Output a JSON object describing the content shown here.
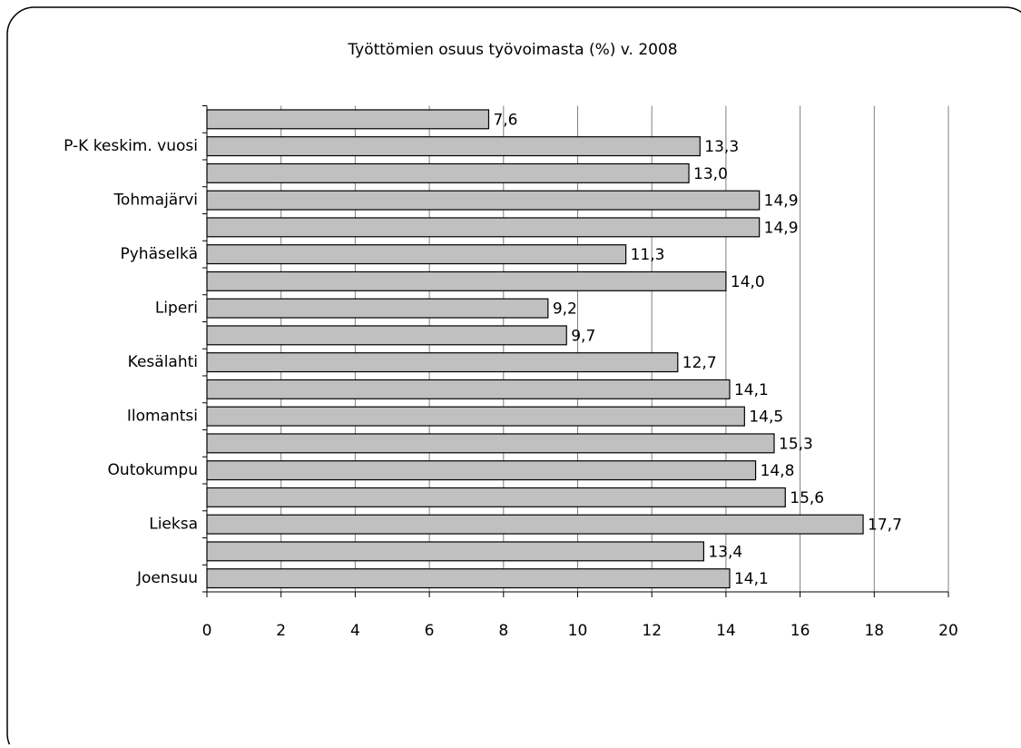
{
  "chart_data": {
    "type": "bar",
    "orientation": "horizontal",
    "title": "Työttömien osuus työvoimasta (%) v. 2008",
    "categories": [
      "Joensuu",
      null,
      "Lieksa",
      null,
      "Outokumpu",
      null,
      "Ilomantsi",
      null,
      "Kesälahti",
      null,
      "Liperi",
      null,
      "Pyhäselkä",
      null,
      "Tohmajärvi",
      null,
      "P-K keskim. vuosi",
      null
    ],
    "values": [
      14.1,
      13.4,
      17.7,
      15.6,
      14.8,
      15.3,
      14.5,
      14.1,
      12.7,
      9.7,
      9.2,
      14.0,
      11.3,
      14.9,
      14.9,
      13.0,
      13.3,
      7.6
    ],
    "value_labels": [
      "14,1",
      "13,4",
      "17,7",
      "15,6",
      "14,8",
      "15,3",
      "14,5",
      "14,1",
      "12,7",
      "9,7",
      "9,2",
      "14,0",
      "11,3",
      "14,9",
      "14,9",
      "13,0",
      "13,3",
      "7,6"
    ],
    "color": "#c0c0c0",
    "xlim": [
      0,
      20
    ],
    "xticks": [
      0,
      2,
      4,
      6,
      8,
      10,
      12,
      14,
      16,
      18,
      20
    ],
    "grid": true
  }
}
